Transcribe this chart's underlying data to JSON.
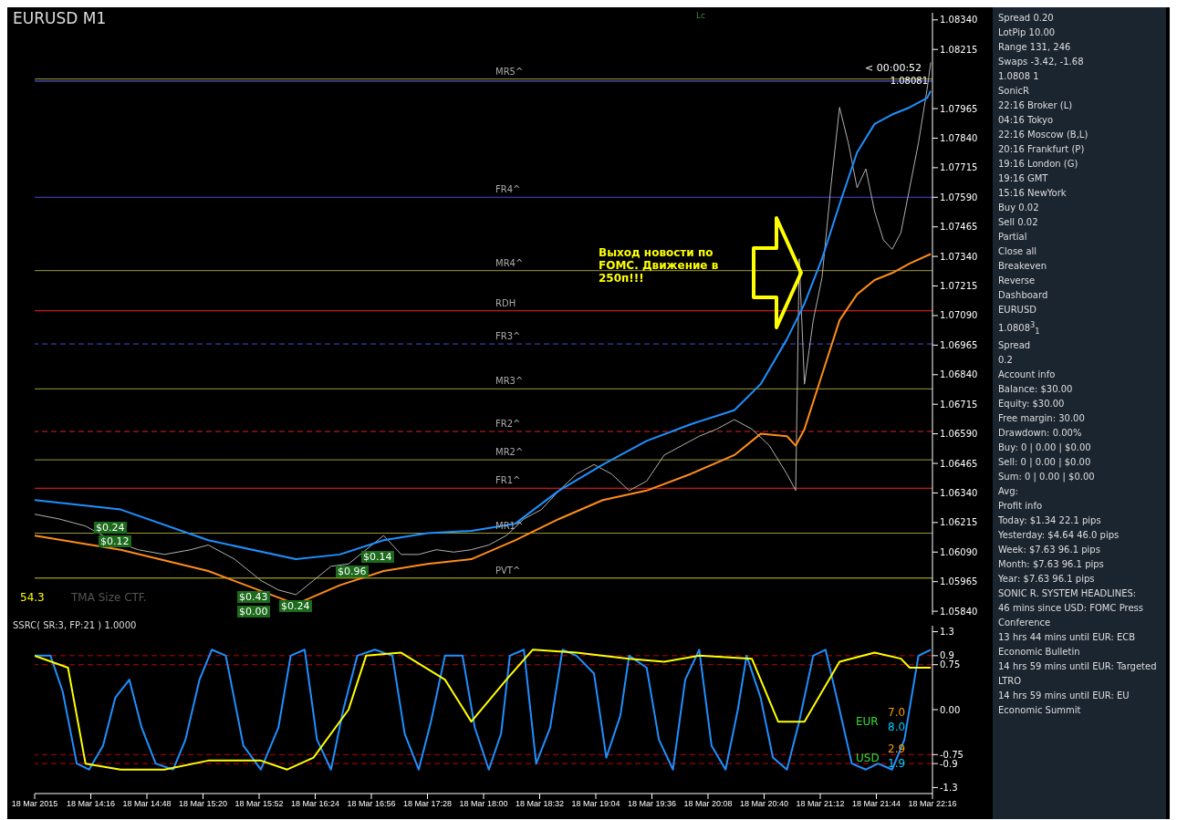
{
  "chart_data": [
    {
      "type": "line",
      "title": "EURUSD M1",
      "marker": "none",
      "tick_labels": "y",
      "xlim": [
        "2015-03-18T13:44",
        "2015-03-18T22:16"
      ],
      "ylim": [
        1.05825,
        1.0837
      ],
      "yticks": [
        {
          "value": 1.0584,
          "label": "1.05840"
        },
        1.05965,
        {
          "value": 1.0609,
          "label": "1.06090"
        },
        1.06215,
        {
          "value": 1.0634,
          "label": "1.06340"
        },
        1.06465,
        {
          "value": 1.0659,
          "label": "1.06590"
        },
        1.06715,
        {
          "value": 1.0684,
          "label": "1.06840"
        },
        1.06965,
        {
          "value": 1.0709,
          "label": "1.07090"
        },
        1.07215,
        {
          "value": 1.0734,
          "label": "1.07340"
        },
        1.07465,
        {
          "value": 1.0759,
          "label": "1.07590"
        },
        1.07715,
        {
          "value": 1.0784,
          "label": "1.07840"
        },
        1.07965,
        1.08215,
        {
          "value": 1.0834,
          "label": "1.08340"
        }
      ],
      "series": [
        {
          "color": "#b0b0b0",
          "x": [
            "2015-03-18T13:44",
            "2015-03-18T13:58",
            "2015-03-18T14:13",
            "2015-03-18T14:28",
            "2015-03-18T14:43",
            "2015-03-18T14:58",
            "2015-03-18T15:13",
            "2015-03-18T15:23",
            "2015-03-18T15:38",
            "2015-03-18T15:53",
            "2015-03-18T16:03",
            "2015-03-18T16:13",
            "2015-03-18T16:23",
            "2015-03-18T16:33",
            "2015-03-18T16:43",
            "2015-03-18T16:53",
            "2015-03-18T17:03",
            "2015-03-18T17:13",
            "2015-03-18T17:23",
            "2015-03-18T17:33",
            "2015-03-18T17:43",
            "2015-03-18T17:53",
            "2015-03-18T18:03",
            "2015-03-18T18:13",
            "2015-03-18T18:23",
            "2015-03-18T18:33",
            "2015-03-18T18:43",
            "2015-03-18T18:53",
            "2015-03-18T19:03",
            "2015-03-18T19:13",
            "2015-03-18T19:23",
            "2015-03-18T19:33",
            "2015-03-18T19:43",
            "2015-03-18T19:53",
            "2015-03-18T20:03",
            "2015-03-18T20:13",
            "2015-03-18T20:23",
            "2015-03-18T20:33",
            "2015-03-18T20:43",
            "2015-03-18T20:53",
            "2015-03-18T20:58",
            "2015-03-18T21:00",
            "2015-03-18T21:03",
            "2015-03-18T21:08",
            "2015-03-18T21:13",
            "2015-03-18T21:18",
            "2015-03-18T21:23",
            "2015-03-18T21:28",
            "2015-03-18T21:33",
            "2015-03-18T21:38",
            "2015-03-18T21:43",
            "2015-03-18T21:48",
            "2015-03-18T21:53",
            "2015-03-18T21:58",
            "2015-03-18T22:03",
            "2015-03-18T22:08",
            "2015-03-18T22:13",
            "2015-03-18T22:15"
          ],
          "values": [
            1.0625,
            1.0623,
            1.062,
            1.0614,
            1.061,
            1.0608,
            1.061,
            1.0612,
            1.0606,
            1.0597,
            1.0593,
            1.0591,
            1.0597,
            1.0603,
            1.0604,
            1.061,
            1.0616,
            1.0608,
            1.0608,
            1.061,
            1.0609,
            1.061,
            1.0612,
            1.0616,
            1.0623,
            1.0627,
            1.0635,
            1.0642,
            1.0646,
            1.0642,
            1.0635,
            1.0639,
            1.065,
            1.0654,
            1.0658,
            1.0661,
            1.0665,
            1.0661,
            1.0654,
            1.0642,
            1.0635,
            1.0733,
            1.068,
            1.0707,
            1.0725,
            1.0763,
            1.0797,
            1.0782,
            1.0763,
            1.0771,
            1.0753,
            1.0741,
            1.0737,
            1.0744,
            1.0763,
            1.0782,
            1.0805,
            1.0816
          ]
        },
        {
          "color": "#1e90ff",
          "x": [
            "2015-03-18T13:44",
            "2015-03-18T14:33",
            "2015-03-18T15:23",
            "2015-03-18T16:13",
            "2015-03-18T16:38",
            "2015-03-18T17:03",
            "2015-03-18T17:28",
            "2015-03-18T17:53",
            "2015-03-18T18:18",
            "2015-03-18T18:43",
            "2015-03-18T19:08",
            "2015-03-18T19:33",
            "2015-03-18T19:58",
            "2015-03-18T20:23",
            "2015-03-18T20:38",
            "2015-03-18T20:53",
            "2015-03-18T21:03",
            "2015-03-18T21:13",
            "2015-03-18T21:23",
            "2015-03-18T21:33",
            "2015-03-18T21:43",
            "2015-03-18T21:53",
            "2015-03-18T22:03",
            "2015-03-18T22:13",
            "2015-03-18T22:15"
          ],
          "values": [
            1.0631,
            1.0627,
            1.0614,
            1.0606,
            1.0608,
            1.0614,
            1.0617,
            1.0618,
            1.0621,
            1.0635,
            1.0646,
            1.0656,
            1.0663,
            1.0669,
            1.068,
            1.0699,
            1.0714,
            1.0733,
            1.0756,
            1.0778,
            1.079,
            1.0794,
            1.0797,
            1.0801,
            1.0804
          ]
        },
        {
          "color": "#ff8c1a",
          "x": [
            "2015-03-18T13:44",
            "2015-03-18T14:33",
            "2015-03-18T15:23",
            "2015-03-18T16:13",
            "2015-03-18T16:38",
            "2015-03-18T17:03",
            "2015-03-18T17:28",
            "2015-03-18T17:53",
            "2015-03-18T18:18",
            "2015-03-18T18:43",
            "2015-03-18T19:08",
            "2015-03-18T19:33",
            "2015-03-18T19:58",
            "2015-03-18T20:23",
            "2015-03-18T20:38",
            "2015-03-18T20:53",
            "2015-03-18T20:58",
            "2015-03-18T21:03",
            "2015-03-18T21:13",
            "2015-03-18T21:23",
            "2015-03-18T21:33",
            "2015-03-18T21:43",
            "2015-03-18T21:53",
            "2015-03-18T22:03",
            "2015-03-18T22:15"
          ],
          "values": [
            1.0616,
            1.061,
            1.0601,
            1.0587,
            1.0595,
            1.0601,
            1.0604,
            1.0606,
            1.0614,
            1.0623,
            1.0631,
            1.0635,
            1.0642,
            1.065,
            1.0659,
            1.0658,
            1.0654,
            1.0661,
            1.0684,
            1.0707,
            1.0718,
            1.0724,
            1.0727,
            1.0731,
            1.0735
          ]
        }
      ],
      "ref_lines": [
        {
          "axis": "y",
          "value": 1.08081,
          "label": "1.08081",
          "color": "#6a6aff",
          "line_style": "solid"
        },
        {
          "axis": "y",
          "value": 1.0809,
          "label": "MR5^",
          "color": "#9a9a3a",
          "line_style": "solid"
        },
        {
          "axis": "y",
          "value": 1.0759,
          "label": "FR4^",
          "color": "#4a4ad0",
          "line_style": "solid"
        },
        {
          "axis": "y",
          "value": 1.0728,
          "label": "MR4^",
          "color": "#9a9a3a",
          "line_style": "solid"
        },
        {
          "axis": "y",
          "value": 1.0711,
          "label": "RDH",
          "color": "#ff2020",
          "line_style": "solid"
        },
        {
          "axis": "y",
          "value": 1.0697,
          "label": "FR3^",
          "color": "#4a4ad0",
          "line_style": "dashed"
        },
        {
          "axis": "y",
          "value": 1.0678,
          "label": "MR3^",
          "color": "#9a9a3a",
          "line_style": "solid"
        },
        {
          "axis": "y",
          "value": 1.066,
          "label": "FR2^",
          "color": "#e02020",
          "line_style": "dashed"
        },
        {
          "axis": "y",
          "value": 1.0648,
          "label": "MR2^",
          "color": "#9a9a3a",
          "line_style": "solid"
        },
        {
          "axis": "y",
          "value": 1.0636,
          "label": "FR1^",
          "color": "#ff2020",
          "line_style": "solid"
        },
        {
          "axis": "y",
          "value": 1.0617,
          "label": "MR1^",
          "color": "#9a9a3a",
          "line_style": "solid"
        },
        {
          "axis": "y",
          "value": 1.0598,
          "label": "PVT^",
          "color": "#c8c820",
          "line_style": "solid"
        }
      ],
      "annotations": [
        "Выход новости по FOMC. Движение в 250п!!!",
        "54.3",
        "TMA Size CTF.",
        "Lc",
        "< 00:00:52",
        "$0.24",
        "$0.12",
        "$0.43",
        "$0.00",
        "$0.24",
        "$0.96",
        "$0.14"
      ]
    },
    {
      "type": "line",
      "title": "SSRC( SR:3, FP:21 ) 1.0000",
      "marker": "none",
      "xlim": [
        "2015-03-18T13:44",
        "2015-03-18T22:16"
      ],
      "xticks": [
        {
          "value": "2015-03-18T13:44",
          "label": "18 Mar 2015"
        },
        {
          "value": "2015-03-18T14:16",
          "label": "18 Mar 14:16"
        },
        {
          "value": "2015-03-18T14:48",
          "label": "18 Mar 14:48"
        },
        {
          "value": "2015-03-18T15:20",
          "label": "18 Mar 15:20"
        },
        {
          "value": "2015-03-18T15:52",
          "label": "18 Mar 15:52"
        },
        {
          "value": "2015-03-18T16:24",
          "label": "18 Mar 16:24"
        },
        {
          "value": "2015-03-18T16:56",
          "label": "18 Mar 16:56"
        },
        {
          "value": "2015-03-18T17:28",
          "label": "18 Mar 17:28"
        },
        {
          "value": "2015-03-18T18:00",
          "label": "18 Mar 18:00"
        },
        {
          "value": "2015-03-18T18:32",
          "label": "18 Mar 18:32"
        },
        {
          "value": "2015-03-18T19:04",
          "label": "18 Mar 19:04"
        },
        {
          "value": "2015-03-18T19:36",
          "label": "18 Mar 19:36"
        },
        {
          "value": "2015-03-18T20:08",
          "label": "18 Mar 20:08"
        },
        {
          "value": "2015-03-18T20:40",
          "label": "18 Mar 20:40"
        },
        {
          "value": "2015-03-18T21:12",
          "label": "18 Mar 21:12"
        },
        {
          "value": "2015-03-18T21:44",
          "label": "18 Mar 21:44"
        },
        {
          "value": "2015-03-18T22:16",
          "label": "18 Mar 22:16"
        }
      ],
      "ylim": [
        -1.4,
        1.4
      ],
      "yticks": [
        1.3,
        0.9,
        0.75,
        {
          "value": 0,
          "label": "0.00"
        },
        -0.75,
        -0.9,
        -1.3
      ],
      "series": [
        {
          "color": "#1e90ff",
          "x": [
            "2015-03-18T13:44",
            "2015-03-18T13:53",
            "2015-03-18T14:00",
            "2015-03-18T14:08",
            "2015-03-18T14:15",
            "2015-03-18T14:23",
            "2015-03-18T14:30",
            "2015-03-18T14:38",
            "2015-03-18T14:45",
            "2015-03-18T14:53",
            "2015-03-18T15:03",
            "2015-03-18T15:10",
            "2015-03-18T15:18",
            "2015-03-18T15:25",
            "2015-03-18T15:33",
            "2015-03-18T15:43",
            "2015-03-18T15:53",
            "2015-03-18T16:03",
            "2015-03-18T16:10",
            "2015-03-18T16:18",
            "2015-03-18T16:25",
            "2015-03-18T16:33",
            "2015-03-18T16:40",
            "2015-03-18T16:48",
            "2015-03-18T16:58",
            "2015-03-18T17:08",
            "2015-03-18T17:15",
            "2015-03-18T17:23",
            "2015-03-18T17:30",
            "2015-03-18T17:38",
            "2015-03-18T17:48",
            "2015-03-18T17:55",
            "2015-03-18T18:03",
            "2015-03-18T18:10",
            "2015-03-18T18:15",
            "2015-03-18T18:23",
            "2015-03-18T18:30",
            "2015-03-18T18:38",
            "2015-03-18T18:45",
            "2015-03-18T18:53",
            "2015-03-18T19:03",
            "2015-03-18T19:10",
            "2015-03-18T19:18",
            "2015-03-18T19:23",
            "2015-03-18T19:33",
            "2015-03-18T19:40",
            "2015-03-18T19:48",
            "2015-03-18T19:55",
            "2015-03-18T20:03",
            "2015-03-18T20:10",
            "2015-03-18T20:18",
            "2015-03-18T20:25",
            "2015-03-18T20:30",
            "2015-03-18T20:38",
            "2015-03-18T20:45",
            "2015-03-18T20:53",
            "2015-03-18T21:00",
            "2015-03-18T21:08",
            "2015-03-18T21:15",
            "2015-03-18T21:23",
            "2015-03-18T21:30",
            "2015-03-18T21:38",
            "2015-03-18T21:45",
            "2015-03-18T21:53",
            "2015-03-18T22:00",
            "2015-03-18T22:08",
            "2015-03-18T22:15"
          ],
          "values": [
            0.9,
            0.9,
            0.3,
            -0.9,
            -1.0,
            -0.6,
            0.2,
            0.5,
            -0.3,
            -0.9,
            -1.0,
            -0.5,
            0.5,
            1.0,
            0.9,
            -0.6,
            -1.0,
            -0.3,
            0.9,
            1.0,
            -0.5,
            -1.0,
            0.0,
            0.9,
            1.0,
            0.9,
            -0.4,
            -1.0,
            -0.2,
            0.9,
            0.9,
            -0.3,
            -1.0,
            -0.4,
            0.9,
            1.0,
            -0.9,
            -0.3,
            1.0,
            0.9,
            0.6,
            -0.8,
            -0.1,
            0.9,
            0.7,
            -0.5,
            -1.0,
            0.5,
            1.0,
            -0.6,
            -1.0,
            0.0,
            0.9,
            0.2,
            -0.8,
            -1.0,
            -0.2,
            0.9,
            1.0,
            0.0,
            -0.9,
            -1.0,
            -0.9,
            -1.0,
            -0.5,
            0.9,
            1.0
          ]
        },
        {
          "color": "#ffff00",
          "x": [
            "2015-03-18T13:44",
            "2015-03-18T14:03",
            "2015-03-18T14:13",
            "2015-03-18T14:33",
            "2015-03-18T14:58",
            "2015-03-18T15:23",
            "2015-03-18T15:53",
            "2015-03-18T16:08",
            "2015-03-18T16:23",
            "2015-03-18T16:43",
            "2015-03-18T16:53",
            "2015-03-18T17:13",
            "2015-03-18T17:38",
            "2015-03-18T17:53",
            "2015-03-18T18:13",
            "2015-03-18T18:28",
            "2015-03-18T18:53",
            "2015-03-18T19:23",
            "2015-03-18T19:43",
            "2015-03-18T20:03",
            "2015-03-18T20:33",
            "2015-03-18T20:48",
            "2015-03-18T21:03",
            "2015-03-18T21:23",
            "2015-03-18T21:43",
            "2015-03-18T21:58",
            "2015-03-18T22:03",
            "2015-03-18T22:15"
          ],
          "values": [
            0.9,
            0.7,
            -0.9,
            -1.0,
            -1.0,
            -0.85,
            -0.85,
            -1.0,
            -0.8,
            0.0,
            0.9,
            0.95,
            0.5,
            -0.2,
            0.5,
            1.0,
            0.95,
            0.85,
            0.8,
            0.9,
            0.85,
            -0.2,
            -0.2,
            0.8,
            0.95,
            0.85,
            0.7,
            0.7
          ]
        }
      ],
      "ref_lines": [
        {
          "axis": "y",
          "value": 0.9,
          "color": "#c00000",
          "line_style": "dashed"
        },
        {
          "axis": "y",
          "value": 0.75,
          "color": "#c00000",
          "line_style": "dashed"
        },
        {
          "axis": "y",
          "value": -0.75,
          "color": "#c00000",
          "line_style": "dashed"
        },
        {
          "axis": "y",
          "value": -0.9,
          "color": "#c00000",
          "line_style": "dashed"
        }
      ],
      "annotations": [
        "EUR",
        "7.0",
        "8.0",
        "USD",
        "2.9",
        "1.9"
      ]
    },
    {
      "type": "other",
      "annotations": [
        "Spread 0.20",
        "LotPip 10.00",
        "Range 131, 246",
        "Swaps -3.42, -1.68",
        "1.0808 1",
        "SonicR",
        "22:16 Broker (L)",
        "04:16 Tokyo",
        "22:16 Moscow (B,L)",
        "20:16 Frankfurt (P)",
        "19:16 London (G)",
        "19:16 GMT",
        "15:16 NewYork",
        "Buy 0.02",
        "Sell 0.02",
        "Partial",
        "Close all",
        "Breakeven",
        "Reverse",
        "Dashboard",
        "EURUSD",
        "1.0808$^{3}$$_{1}$",
        "Spread",
        "0.2",
        "Account info",
        "Balance: $30.00",
        "Equity: $30.00",
        "Free margin: 30.00",
        "Drawdown: 0.00%",
        "Buy: 0 | 0.00 | $0.00",
        "Sell: 0 | 0.00 | $0.00",
        "Sum: 0 | 0.00 | $0.00",
        "Avg:",
        "Profit info",
        "Today: $1.34 22.1 pips",
        "Yesterday: $4.64 46.0 pips",
        "Week: $7.63 96.1 pips",
        "Month: $7.63 96.1 pips",
        "Year: $7.63 96.1 pips",
        "SONIC R. SYSTEM HEADLINES:",
        "46 mins since USD: FOMC Press Conference",
        "13 hrs 44 mins until EUR: ECB Economic Bulletin",
        "14 hrs 59 mins until EUR: Targeted LTRO",
        "14 hrs 59 mins until EUR: EU Economic Summit"
      ]
    }
  ]
}
